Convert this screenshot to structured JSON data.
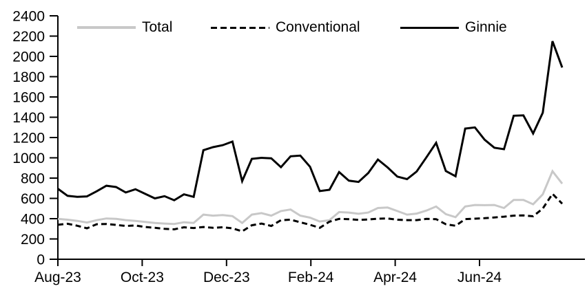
{
  "chart_data": {
    "type": "line",
    "title": "",
    "xlabel": "",
    "ylabel": "",
    "x_tick_labels": [
      "Aug-23",
      "Oct-23",
      "Dec-23",
      "Feb-24",
      "Apr-24",
      "Jun-24"
    ],
    "y_axis": {
      "min": 0,
      "max": 2400,
      "step": 200
    },
    "ylim": [
      0,
      2400
    ],
    "grid": false,
    "legend_position": "top",
    "series": [
      {
        "name": "Total",
        "color": "#c8c8c8",
        "dash": "solid",
        "values": [
          398,
          390,
          378,
          362,
          385,
          402,
          398,
          386,
          378,
          368,
          358,
          352,
          348,
          365,
          358,
          440,
          430,
          435,
          425,
          358,
          440,
          455,
          430,
          475,
          490,
          430,
          410,
          372,
          385,
          465,
          460,
          448,
          460,
          505,
          510,
          475,
          440,
          450,
          480,
          520,
          445,
          415,
          520,
          535,
          533,
          535,
          505,
          585,
          585,
          542,
          640,
          868,
          745
        ]
      },
      {
        "name": "Conventional",
        "color": "#000000",
        "dash": "dashed",
        "values": [
          340,
          350,
          330,
          305,
          345,
          348,
          338,
          328,
          333,
          318,
          310,
          300,
          295,
          315,
          308,
          318,
          310,
          315,
          305,
          275,
          335,
          352,
          328,
          385,
          390,
          365,
          340,
          310,
          370,
          398,
          395,
          388,
          392,
          400,
          402,
          390,
          386,
          386,
          398,
          395,
          345,
          330,
          395,
          400,
          405,
          412,
          420,
          430,
          432,
          424,
          500,
          645,
          548
        ]
      },
      {
        "name": "Ginnie",
        "color": "#000000",
        "dash": "solid",
        "values": [
          695,
          625,
          615,
          620,
          670,
          725,
          712,
          658,
          690,
          645,
          600,
          622,
          582,
          640,
          615,
          1075,
          1105,
          1125,
          1160,
          770,
          990,
          1000,
          995,
          908,
          1015,
          1022,
          912,
          672,
          685,
          860,
          775,
          762,
          850,
          983,
          905,
          815,
          790,
          865,
          1005,
          1148,
          870,
          818,
          1288,
          1300,
          1178,
          1100,
          1085,
          1415,
          1418,
          1240,
          1445,
          2150,
          1890
        ]
      }
    ],
    "axis_color": "#000000"
  }
}
